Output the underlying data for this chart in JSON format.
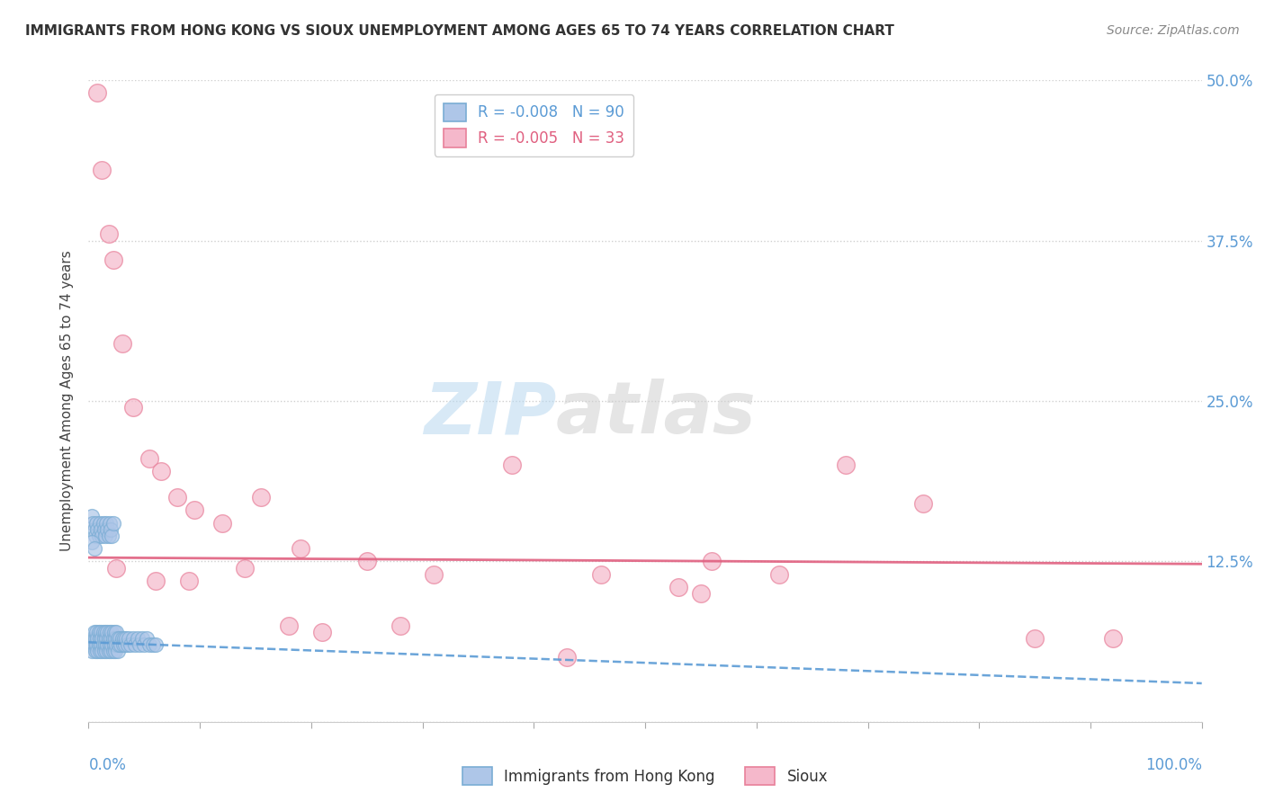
{
  "title": "IMMIGRANTS FROM HONG KONG VS SIOUX UNEMPLOYMENT AMONG AGES 65 TO 74 YEARS CORRELATION CHART",
  "source": "Source: ZipAtlas.com",
  "ylabel": "Unemployment Among Ages 65 to 74 years",
  "xlim": [
    0,
    1.0
  ],
  "ylim": [
    0,
    0.5
  ],
  "yticks": [
    0.0,
    0.125,
    0.25,
    0.375,
    0.5
  ],
  "ytick_labels": [
    "",
    "12.5%",
    "25.0%",
    "37.5%",
    "50.0%"
  ],
  "xticks": [
    0.0,
    0.1,
    0.2,
    0.3,
    0.4,
    0.5,
    0.6,
    0.7,
    0.8,
    0.9,
    1.0
  ],
  "blue_label": "Immigrants from Hong Kong",
  "pink_label": "Sioux",
  "blue_R": "-0.008",
  "blue_N": "90",
  "pink_R": "-0.005",
  "pink_N": "33",
  "blue_color": "#aec6e8",
  "pink_color": "#f5b8cb",
  "blue_edge": "#7aadd4",
  "pink_edge": "#e8809a",
  "blue_reg_color": "#5b9bd5",
  "pink_reg_color": "#e06080",
  "watermark_zip": "ZIP",
  "watermark_atlas": "atlas",
  "background_color": "#ffffff",
  "grid_color": "#d0d0d0",
  "right_tick_color": "#5b9bd5",
  "title_color": "#333333",
  "source_color": "#888888",
  "blue_reg_intercept": 0.062,
  "blue_reg_slope": -0.032,
  "pink_reg_intercept": 0.128,
  "pink_reg_slope": -0.005,
  "blue_points_x": [
    0.002,
    0.003,
    0.004,
    0.005,
    0.005,
    0.006,
    0.006,
    0.007,
    0.007,
    0.008,
    0.008,
    0.009,
    0.009,
    0.01,
    0.01,
    0.011,
    0.011,
    0.012,
    0.012,
    0.013,
    0.013,
    0.014,
    0.014,
    0.015,
    0.015,
    0.016,
    0.016,
    0.017,
    0.017,
    0.018,
    0.018,
    0.019,
    0.019,
    0.02,
    0.02,
    0.021,
    0.021,
    0.022,
    0.022,
    0.023,
    0.023,
    0.024,
    0.024,
    0.025,
    0.025,
    0.026,
    0.026,
    0.027,
    0.028,
    0.029,
    0.03,
    0.031,
    0.032,
    0.033,
    0.034,
    0.035,
    0.036,
    0.038,
    0.04,
    0.042,
    0.044,
    0.046,
    0.048,
    0.05,
    0.052,
    0.055,
    0.058,
    0.06,
    0.003,
    0.004,
    0.005,
    0.006,
    0.007,
    0.008,
    0.009,
    0.01,
    0.011,
    0.012,
    0.013,
    0.014,
    0.015,
    0.016,
    0.017,
    0.018,
    0.019,
    0.02,
    0.021,
    0.022,
    0.003,
    0.005
  ],
  "blue_points_y": [
    0.06,
    0.055,
    0.065,
    0.06,
    0.07,
    0.055,
    0.065,
    0.06,
    0.07,
    0.055,
    0.065,
    0.06,
    0.07,
    0.055,
    0.065,
    0.06,
    0.07,
    0.055,
    0.065,
    0.06,
    0.07,
    0.055,
    0.065,
    0.06,
    0.07,
    0.055,
    0.065,
    0.06,
    0.07,
    0.055,
    0.065,
    0.06,
    0.07,
    0.055,
    0.065,
    0.06,
    0.07,
    0.055,
    0.065,
    0.06,
    0.07,
    0.055,
    0.065,
    0.06,
    0.07,
    0.055,
    0.065,
    0.06,
    0.065,
    0.06,
    0.065,
    0.06,
    0.065,
    0.06,
    0.065,
    0.06,
    0.065,
    0.06,
    0.065,
    0.06,
    0.065,
    0.06,
    0.065,
    0.06,
    0.065,
    0.06,
    0.06,
    0.06,
    0.16,
    0.155,
    0.15,
    0.145,
    0.155,
    0.15,
    0.145,
    0.155,
    0.15,
    0.145,
    0.155,
    0.15,
    0.145,
    0.155,
    0.15,
    0.145,
    0.155,
    0.15,
    0.145,
    0.155,
    0.14,
    0.135
  ],
  "pink_points_x": [
    0.008,
    0.012,
    0.018,
    0.022,
    0.03,
    0.04,
    0.055,
    0.065,
    0.08,
    0.095,
    0.12,
    0.155,
    0.19,
    0.25,
    0.31,
    0.38,
    0.46,
    0.53,
    0.56,
    0.62,
    0.68,
    0.75,
    0.85,
    0.92,
    0.025,
    0.06,
    0.18,
    0.28,
    0.43,
    0.55,
    0.09,
    0.14,
    0.21
  ],
  "pink_points_y": [
    0.49,
    0.43,
    0.38,
    0.36,
    0.295,
    0.245,
    0.205,
    0.195,
    0.175,
    0.165,
    0.155,
    0.175,
    0.135,
    0.125,
    0.115,
    0.2,
    0.115,
    0.105,
    0.125,
    0.115,
    0.2,
    0.17,
    0.065,
    0.065,
    0.12,
    0.11,
    0.075,
    0.075,
    0.05,
    0.1,
    0.11,
    0.12,
    0.07
  ],
  "marker_size_blue": 130,
  "marker_size_pink": 200
}
